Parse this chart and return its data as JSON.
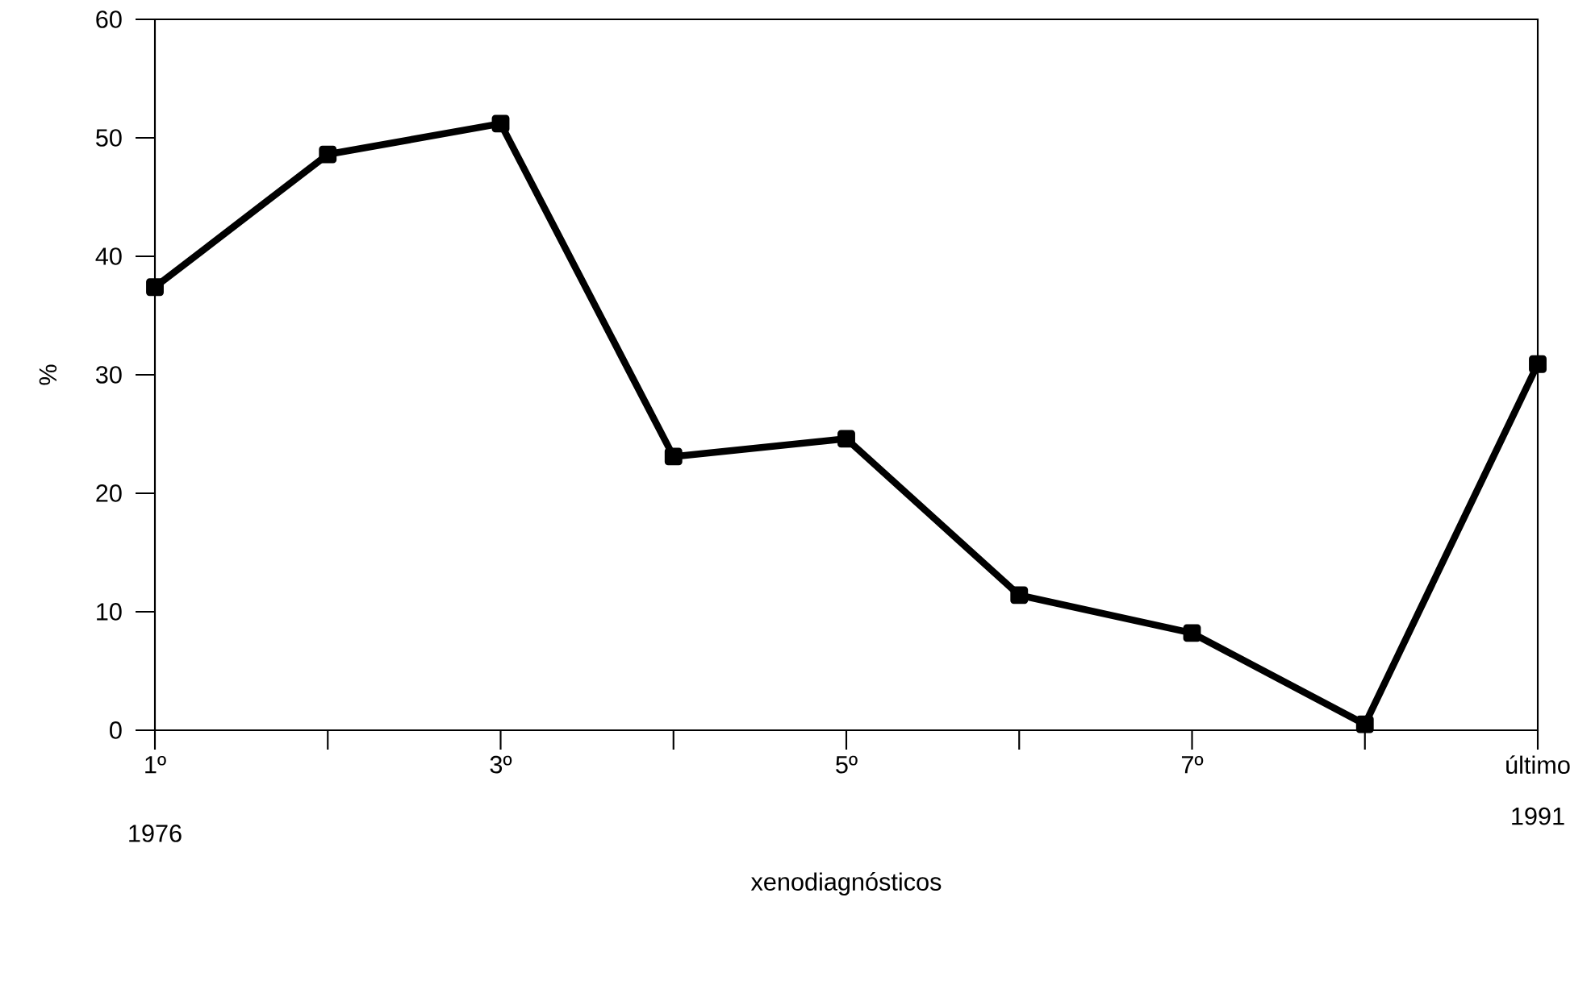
{
  "chart_data": {
    "type": "line",
    "categories": [
      "1º",
      null,
      "3º",
      null,
      "5º",
      null,
      "7º",
      null,
      "último"
    ],
    "values": [
      37.4,
      48.6,
      51.2,
      23.1,
      24.6,
      11.4,
      8.2,
      0.5,
      30.9
    ],
    "color": "#000000",
    "xlabel": "xenodiagnósticos",
    "ylabel": "%",
    "ylim": [
      0,
      60
    ],
    "yticks": [
      0,
      10,
      20,
      30,
      40,
      50,
      60
    ],
    "annotations": [
      "1976",
      "1991"
    ],
    "marker": "square",
    "line_style": "solid"
  }
}
